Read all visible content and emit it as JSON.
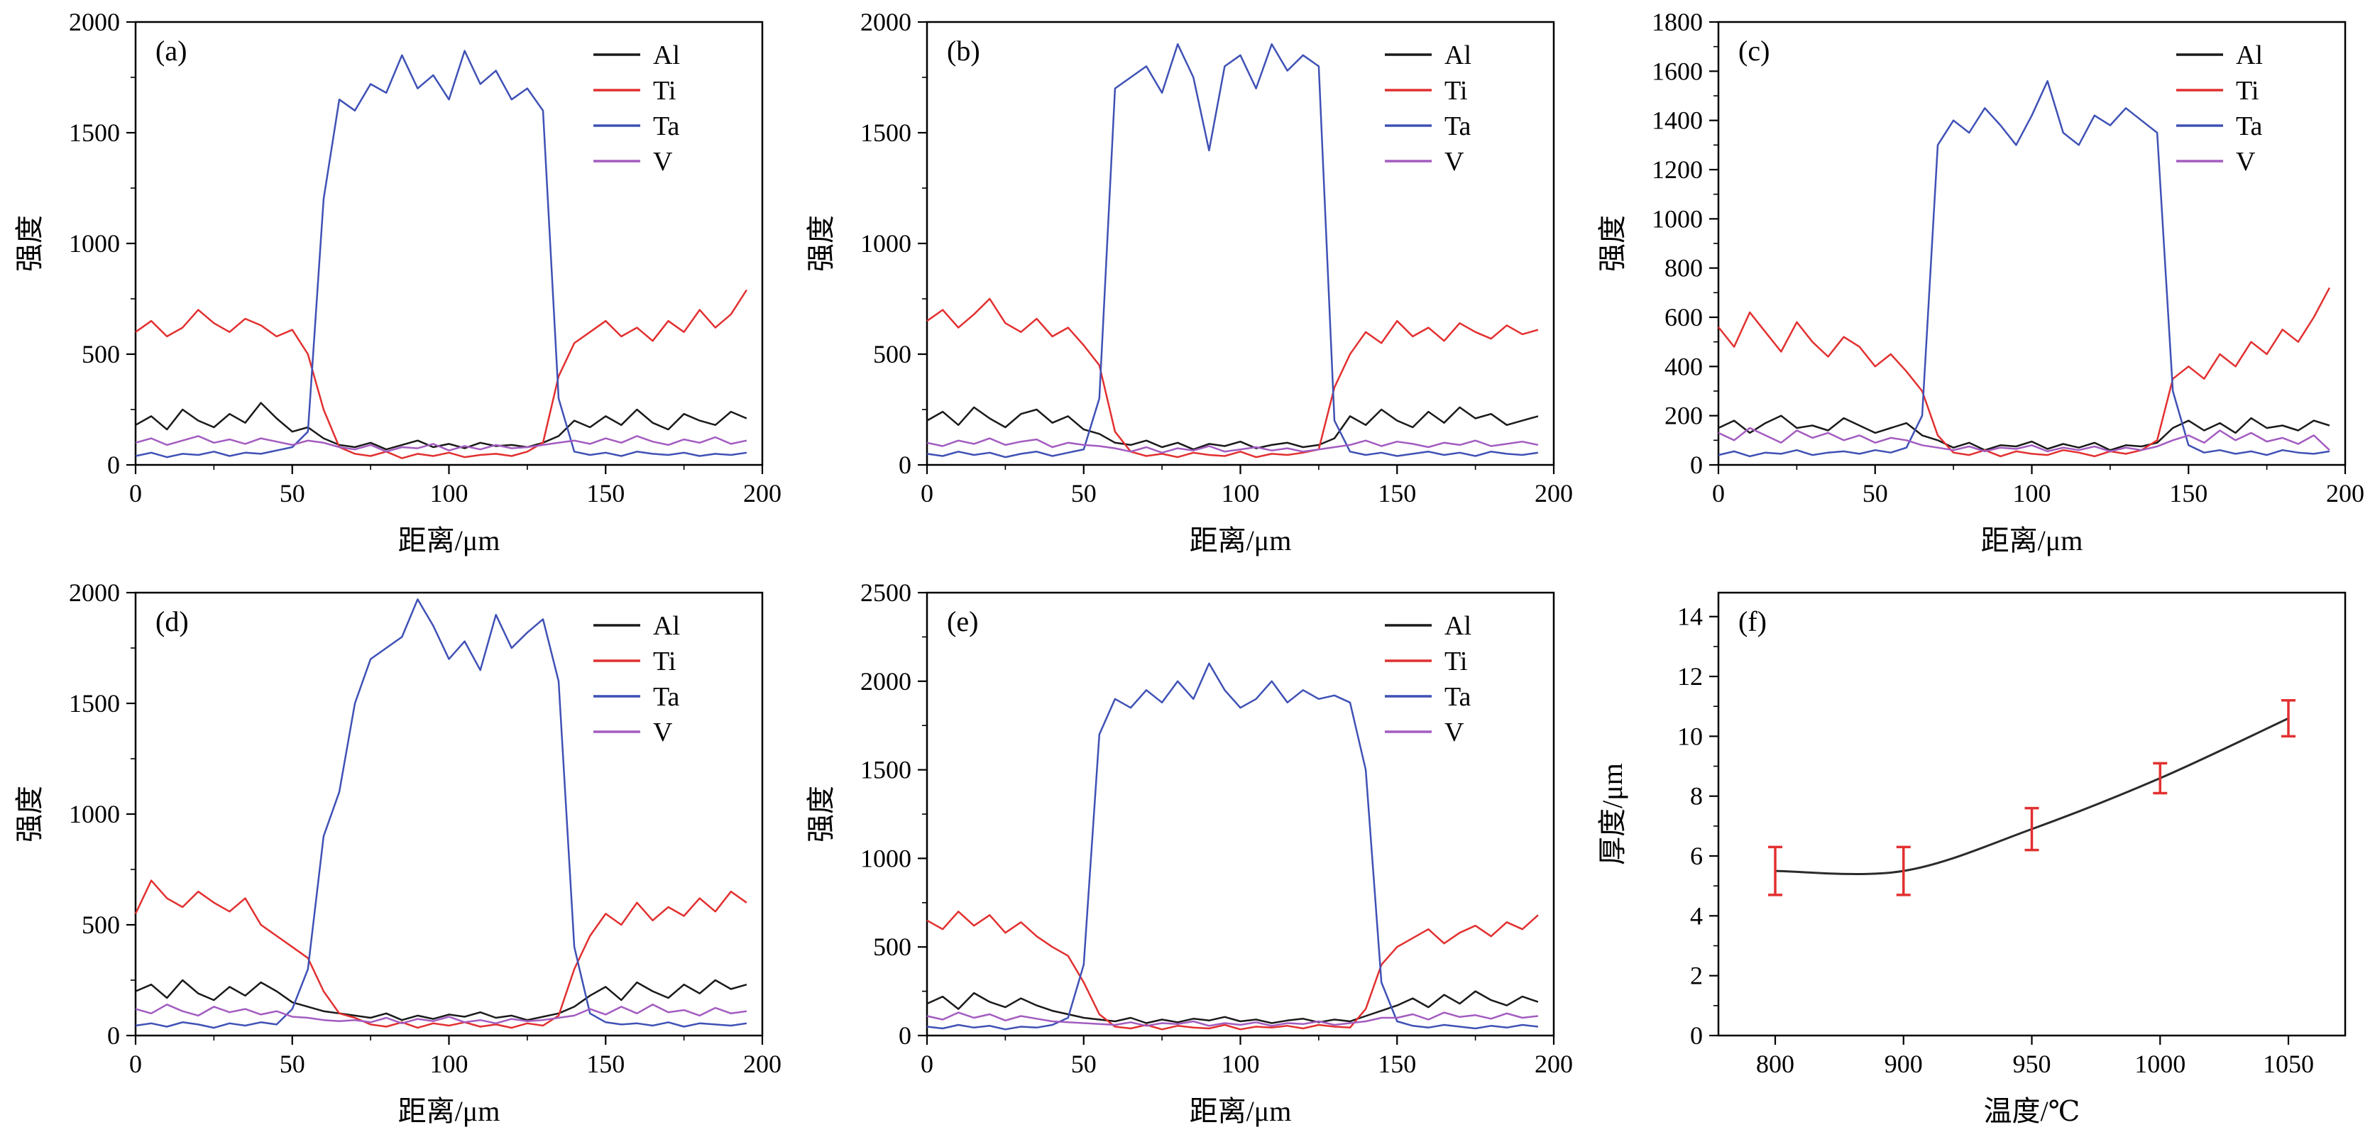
{
  "figure": {
    "background": "#ffffff"
  },
  "chart_data": [
    {
      "panel": "(a)",
      "type": "line",
      "xlabel": "距离/μm",
      "ylabel": "强度",
      "xlim": [
        0,
        200
      ],
      "xticks": [
        0,
        50,
        100,
        150,
        200
      ],
      "x_minor_step": 25,
      "ylim": [
        0,
        2000
      ],
      "yticks": [
        0,
        500,
        1000,
        1500,
        2000
      ],
      "y_minor_step": 250,
      "x_start": 0,
      "x_step": 5,
      "legend_position": "top-right",
      "series": [
        {
          "name": "Al",
          "color": "#1a1a1a",
          "values": [
            180,
            220,
            160,
            250,
            200,
            170,
            230,
            190,
            280,
            210,
            150,
            170,
            120,
            90,
            80,
            100,
            70,
            90,
            110,
            80,
            95,
            75,
            100,
            85,
            90,
            80,
            100,
            130,
            200,
            170,
            220,
            180,
            250,
            190,
            160,
            230,
            200,
            180,
            240,
            210
          ]
        },
        {
          "name": "Ti",
          "color": "#e23030",
          "values": [
            600,
            650,
            580,
            620,
            700,
            640,
            600,
            660,
            630,
            580,
            610,
            500,
            250,
            80,
            50,
            40,
            60,
            30,
            50,
            40,
            55,
            35,
            45,
            50,
            40,
            60,
            100,
            400,
            550,
            600,
            650,
            580,
            620,
            560,
            650,
            600,
            700,
            620,
            680,
            790
          ]
        },
        {
          "name": "Ta",
          "color": "#3f51b5",
          "values": [
            40,
            55,
            35,
            50,
            45,
            60,
            40,
            55,
            50,
            65,
            80,
            150,
            1200,
            1650,
            1600,
            1720,
            1680,
            1850,
            1700,
            1760,
            1650,
            1870,
            1720,
            1780,
            1650,
            1700,
            1600,
            300,
            60,
            45,
            55,
            40,
            60,
            50,
            45,
            55,
            40,
            50,
            45,
            55
          ]
        },
        {
          "name": "V",
          "color": "#a35cc0",
          "values": [
            100,
            120,
            90,
            110,
            130,
            100,
            115,
            95,
            120,
            105,
            90,
            110,
            100,
            80,
            70,
            90,
            60,
            80,
            75,
            95,
            65,
            85,
            70,
            90,
            75,
            80,
            90,
            100,
            110,
            95,
            120,
            100,
            130,
            105,
            90,
            115,
            100,
            125,
            95,
            110
          ]
        }
      ]
    },
    {
      "panel": "(b)",
      "type": "line",
      "xlabel": "距离/μm",
      "ylabel": "强度",
      "xlim": [
        0,
        200
      ],
      "xticks": [
        0,
        50,
        100,
        150,
        200
      ],
      "x_minor_step": 25,
      "ylim": [
        0,
        2000
      ],
      "yticks": [
        0,
        500,
        1000,
        1500,
        2000
      ],
      "y_minor_step": 250,
      "x_start": 0,
      "x_step": 5,
      "legend_position": "top-right",
      "series": [
        {
          "name": "Al",
          "color": "#1a1a1a",
          "values": [
            200,
            240,
            180,
            260,
            210,
            170,
            230,
            250,
            190,
            220,
            160,
            140,
            100,
            90,
            110,
            80,
            100,
            70,
            95,
            85,
            105,
            75,
            90,
            100,
            80,
            90,
            120,
            220,
            180,
            250,
            200,
            170,
            240,
            190,
            260,
            210,
            230,
            180,
            200,
            220
          ]
        },
        {
          "name": "Ti",
          "color": "#e23030",
          "values": [
            650,
            700,
            620,
            680,
            750,
            640,
            600,
            660,
            580,
            620,
            540,
            450,
            150,
            60,
            40,
            50,
            35,
            55,
            45,
            40,
            60,
            35,
            50,
            45,
            55,
            70,
            350,
            500,
            600,
            550,
            650,
            580,
            620,
            560,
            640,
            600,
            570,
            630,
            590,
            610
          ]
        },
        {
          "name": "Ta",
          "color": "#3f51b5",
          "values": [
            50,
            40,
            60,
            45,
            55,
            35,
            50,
            60,
            40,
            55,
            70,
            300,
            1700,
            1750,
            1800,
            1680,
            1900,
            1750,
            1420,
            1800,
            1850,
            1700,
            1900,
            1780,
            1850,
            1800,
            200,
            60,
            45,
            55,
            40,
            50,
            60,
            45,
            55,
            40,
            60,
            50,
            45,
            55
          ]
        },
        {
          "name": "V",
          "color": "#a35cc0",
          "values": [
            100,
            85,
            110,
            95,
            120,
            90,
            105,
            115,
            80,
            100,
            90,
            85,
            75,
            60,
            80,
            55,
            75,
            65,
            85,
            60,
            70,
            80,
            65,
            75,
            60,
            70,
            80,
            90,
            110,
            85,
            105,
            95,
            80,
            100,
            90,
            110,
            85,
            95,
            105,
            90
          ]
        }
      ]
    },
    {
      "panel": "(c)",
      "type": "line",
      "xlabel": "距离/μm",
      "ylabel": "强度",
      "xlim": [
        0,
        200
      ],
      "xticks": [
        0,
        50,
        100,
        150,
        200
      ],
      "x_minor_step": 25,
      "ylim": [
        0,
        1800
      ],
      "yticks": [
        0,
        200,
        400,
        600,
        800,
        1000,
        1200,
        1400,
        1600,
        1800
      ],
      "y_minor_step": 100,
      "x_start": 0,
      "x_step": 5,
      "legend_position": "top-right",
      "series": [
        {
          "name": "Al",
          "color": "#1a1a1a",
          "values": [
            150,
            180,
            130,
            170,
            200,
            150,
            160,
            140,
            190,
            160,
            130,
            150,
            170,
            120,
            100,
            70,
            90,
            60,
            80,
            75,
            95,
            65,
            85,
            70,
            90,
            60,
            80,
            75,
            90,
            150,
            180,
            140,
            170,
            130,
            190,
            150,
            160,
            140,
            180,
            160
          ]
        },
        {
          "name": "Ti",
          "color": "#e23030",
          "values": [
            560,
            480,
            620,
            540,
            460,
            580,
            500,
            440,
            520,
            480,
            400,
            450,
            380,
            300,
            120,
            50,
            40,
            60,
            35,
            55,
            45,
            40,
            60,
            50,
            35,
            55,
            45,
            60,
            100,
            350,
            400,
            350,
            450,
            400,
            500,
            450,
            550,
            500,
            600,
            720
          ]
        },
        {
          "name": "Ta",
          "color": "#3f51b5",
          "values": [
            40,
            55,
            35,
            50,
            45,
            60,
            40,
            50,
            55,
            45,
            60,
            50,
            70,
            200,
            1300,
            1400,
            1350,
            1450,
            1380,
            1300,
            1420,
            1560,
            1350,
            1300,
            1420,
            1380,
            1450,
            1400,
            1350,
            300,
            80,
            50,
            60,
            45,
            55,
            40,
            60,
            50,
            45,
            55
          ]
        },
        {
          "name": "V",
          "color": "#a35cc0",
          "values": [
            130,
            100,
            150,
            120,
            90,
            140,
            110,
            130,
            100,
            120,
            90,
            110,
            100,
            80,
            70,
            60,
            75,
            55,
            70,
            65,
            80,
            55,
            70,
            60,
            75,
            55,
            70,
            60,
            75,
            100,
            120,
            90,
            140,
            100,
            130,
            95,
            110,
            85,
            120,
            60
          ]
        }
      ]
    },
    {
      "panel": "(d)",
      "type": "line",
      "xlabel": "距离/μm",
      "ylabel": "强度",
      "xlim": [
        0,
        200
      ],
      "xticks": [
        0,
        50,
        100,
        150,
        200
      ],
      "x_minor_step": 25,
      "ylim": [
        0,
        2000
      ],
      "yticks": [
        0,
        500,
        1000,
        1500,
        2000
      ],
      "y_minor_step": 250,
      "x_start": 0,
      "x_step": 5,
      "legend_position": "top-right",
      "series": [
        {
          "name": "Al",
          "color": "#1a1a1a",
          "values": [
            200,
            230,
            170,
            250,
            190,
            160,
            220,
            180,
            240,
            200,
            150,
            130,
            110,
            100,
            90,
            80,
            100,
            70,
            90,
            75,
            95,
            85,
            105,
            80,
            90,
            70,
            85,
            100,
            130,
            180,
            220,
            160,
            240,
            200,
            170,
            230,
            190,
            250,
            210,
            230
          ]
        },
        {
          "name": "Ti",
          "color": "#e23030",
          "values": [
            550,
            700,
            620,
            580,
            650,
            600,
            560,
            620,
            500,
            450,
            400,
            350,
            200,
            100,
            80,
            50,
            40,
            60,
            35,
            55,
            45,
            60,
            40,
            50,
            35,
            55,
            45,
            90,
            300,
            450,
            550,
            500,
            600,
            520,
            580,
            540,
            620,
            560,
            650,
            600
          ]
        },
        {
          "name": "Ta",
          "color": "#3f51b5",
          "values": [
            45,
            55,
            40,
            60,
            50,
            35,
            55,
            45,
            60,
            50,
            120,
            300,
            900,
            1100,
            1500,
            1700,
            1750,
            1800,
            1970,
            1850,
            1700,
            1780,
            1650,
            1900,
            1750,
            1820,
            1880,
            1600,
            400,
            100,
            60,
            50,
            55,
            45,
            60,
            40,
            55,
            50,
            45,
            55
          ]
        },
        {
          "name": "V",
          "color": "#a35cc0",
          "values": [
            120,
            100,
            140,
            110,
            90,
            130,
            105,
            120,
            95,
            110,
            85,
            80,
            70,
            65,
            70,
            60,
            80,
            55,
            75,
            65,
            85,
            60,
            70,
            55,
            75,
            65,
            70,
            80,
            90,
            120,
            95,
            130,
            100,
            140,
            105,
            115,
            90,
            125,
            100,
            110
          ]
        }
      ]
    },
    {
      "panel": "(e)",
      "type": "line",
      "xlabel": "距离/μm",
      "ylabel": "强度",
      "xlim": [
        0,
        200
      ],
      "xticks": [
        0,
        50,
        100,
        150,
        200
      ],
      "x_minor_step": 25,
      "ylim": [
        0,
        2500
      ],
      "yticks": [
        0,
        500,
        1000,
        1500,
        2000,
        2500
      ],
      "y_minor_step": 250,
      "x_start": 0,
      "x_step": 5,
      "legend_position": "top-right",
      "series": [
        {
          "name": "Al",
          "color": "#1a1a1a",
          "values": [
            180,
            220,
            150,
            240,
            190,
            160,
            210,
            170,
            140,
            120,
            100,
            90,
            80,
            100,
            70,
            90,
            75,
            95,
            85,
            105,
            80,
            90,
            70,
            85,
            95,
            75,
            90,
            80,
            110,
            140,
            170,
            210,
            160,
            230,
            180,
            250,
            200,
            170,
            220,
            190
          ]
        },
        {
          "name": "Ti",
          "color": "#e23030",
          "values": [
            650,
            600,
            700,
            620,
            680,
            580,
            640,
            560,
            500,
            450,
            300,
            120,
            50,
            40,
            60,
            35,
            55,
            45,
            40,
            60,
            35,
            50,
            45,
            55,
            40,
            60,
            50,
            45,
            150,
            400,
            500,
            550,
            600,
            520,
            580,
            620,
            560,
            640,
            600,
            680
          ]
        },
        {
          "name": "Ta",
          "color": "#3f51b5",
          "values": [
            50,
            40,
            60,
            45,
            55,
            35,
            50,
            45,
            60,
            100,
            400,
            1700,
            1900,
            1850,
            1950,
            1880,
            2000,
            1900,
            2100,
            1950,
            1850,
            1900,
            2000,
            1880,
            1950,
            1900,
            1920,
            1880,
            1500,
            300,
            80,
            55,
            45,
            60,
            50,
            40,
            55,
            45,
            60,
            50
          ]
        },
        {
          "name": "V",
          "color": "#a35cc0",
          "values": [
            110,
            90,
            130,
            100,
            120,
            85,
            110,
            95,
            80,
            75,
            70,
            65,
            60,
            75,
            55,
            70,
            65,
            80,
            55,
            70,
            60,
            75,
            55,
            70,
            65,
            80,
            60,
            70,
            80,
            100,
            100,
            120,
            90,
            130,
            105,
            115,
            95,
            125,
            100,
            110
          ]
        }
      ]
    },
    {
      "panel": "(f)",
      "type": "line_errorbar",
      "xlabel": "温度/℃",
      "ylabel": "厚度/μm",
      "categories": [
        "800",
        "900",
        "950",
        "1000",
        "1050"
      ],
      "values": [
        5.5,
        5.5,
        6.9,
        8.6,
        10.6
      ],
      "errors": [
        0.8,
        0.8,
        0.7,
        0.5,
        0.6
      ],
      "ylim": [
        0,
        14.8
      ],
      "yticks": [
        0,
        2,
        4,
        6,
        8,
        10,
        12,
        14
      ],
      "y_minor_step": 1,
      "line_color": "#2b2b2b",
      "error_color": "#e23030"
    }
  ]
}
